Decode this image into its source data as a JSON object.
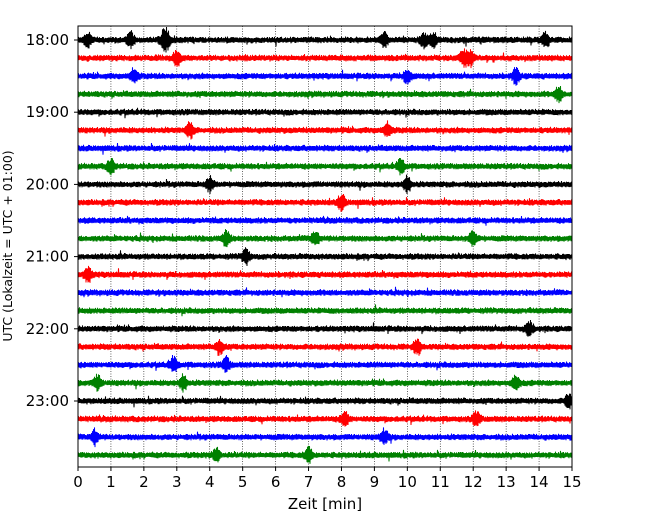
{
  "chart_data": {
    "type": "line",
    "title": "",
    "xlabel": "Zeit  [min]",
    "ylabel": "UTC (Lokalzeit = UTC + 01:00)",
    "xlim": [
      0,
      15
    ],
    "x_ticks": [
      "0",
      "1",
      "2",
      "3",
      "4",
      "5",
      "6",
      "7",
      "8",
      "9",
      "10",
      "11",
      "12",
      "13",
      "14",
      "15"
    ],
    "y_tick_labels": [
      "18:00",
      "19:00",
      "20:00",
      "21:00",
      "22:00",
      "23:00"
    ],
    "ylim_minutes": [
      1080,
      1440
    ],
    "row_interval_minutes": 15,
    "grid": "vertical dotted lines at every minute",
    "trace_colors": [
      "#000000",
      "#ff0000",
      "#0000ff",
      "#008000"
    ],
    "series": [
      {
        "start": "18:00",
        "color": "#000000",
        "events_min": [
          0.3,
          1.6,
          2.6,
          2.7,
          9.3,
          10.5,
          10.8,
          14.2
        ]
      },
      {
        "start": "18:15",
        "color": "#ff0000",
        "events_min": [
          3.0,
          11.7,
          11.9
        ]
      },
      {
        "start": "18:30",
        "color": "#0000ff",
        "events_min": [
          1.7,
          10.0,
          13.3
        ]
      },
      {
        "start": "18:45",
        "color": "#008000",
        "events_min": [
          14.6
        ]
      },
      {
        "start": "19:00",
        "color": "#000000",
        "events_min": []
      },
      {
        "start": "19:15",
        "color": "#ff0000",
        "events_min": [
          3.4,
          9.4
        ]
      },
      {
        "start": "19:30",
        "color": "#0000ff",
        "events_min": []
      },
      {
        "start": "19:45",
        "color": "#008000",
        "events_min": [
          1.0,
          9.8
        ]
      },
      {
        "start": "20:00",
        "color": "#000000",
        "events_min": [
          4.0,
          10.0
        ]
      },
      {
        "start": "20:15",
        "color": "#ff0000",
        "events_min": [
          8.0
        ]
      },
      {
        "start": "20:30",
        "color": "#0000ff",
        "events_min": []
      },
      {
        "start": "20:45",
        "color": "#008000",
        "events_min": [
          4.5,
          7.2,
          12.0
        ]
      },
      {
        "start": "21:00",
        "color": "#000000",
        "events_min": [
          5.1
        ]
      },
      {
        "start": "21:15",
        "color": "#ff0000",
        "events_min": [
          0.3
        ]
      },
      {
        "start": "21:30",
        "color": "#0000ff",
        "events_min": []
      },
      {
        "start": "21:45",
        "color": "#008000",
        "events_min": []
      },
      {
        "start": "22:00",
        "color": "#000000",
        "events_min": [
          13.7
        ]
      },
      {
        "start": "22:15",
        "color": "#ff0000",
        "events_min": [
          4.3,
          10.3
        ]
      },
      {
        "start": "22:30",
        "color": "#0000ff",
        "events_min": [
          2.9,
          4.5
        ]
      },
      {
        "start": "22:45",
        "color": "#008000",
        "events_min": [
          0.6,
          3.2,
          13.3
        ]
      },
      {
        "start": "23:00",
        "color": "#000000",
        "events_min": [
          14.9
        ]
      },
      {
        "start": "23:15",
        "color": "#ff0000",
        "events_min": [
          8.1,
          12.1
        ]
      },
      {
        "start": "23:30",
        "color": "#0000ff",
        "events_min": [
          0.5,
          9.3
        ]
      },
      {
        "start": "23:45",
        "color": "#008000",
        "events_min": [
          4.2,
          7.0
        ]
      }
    ]
  }
}
